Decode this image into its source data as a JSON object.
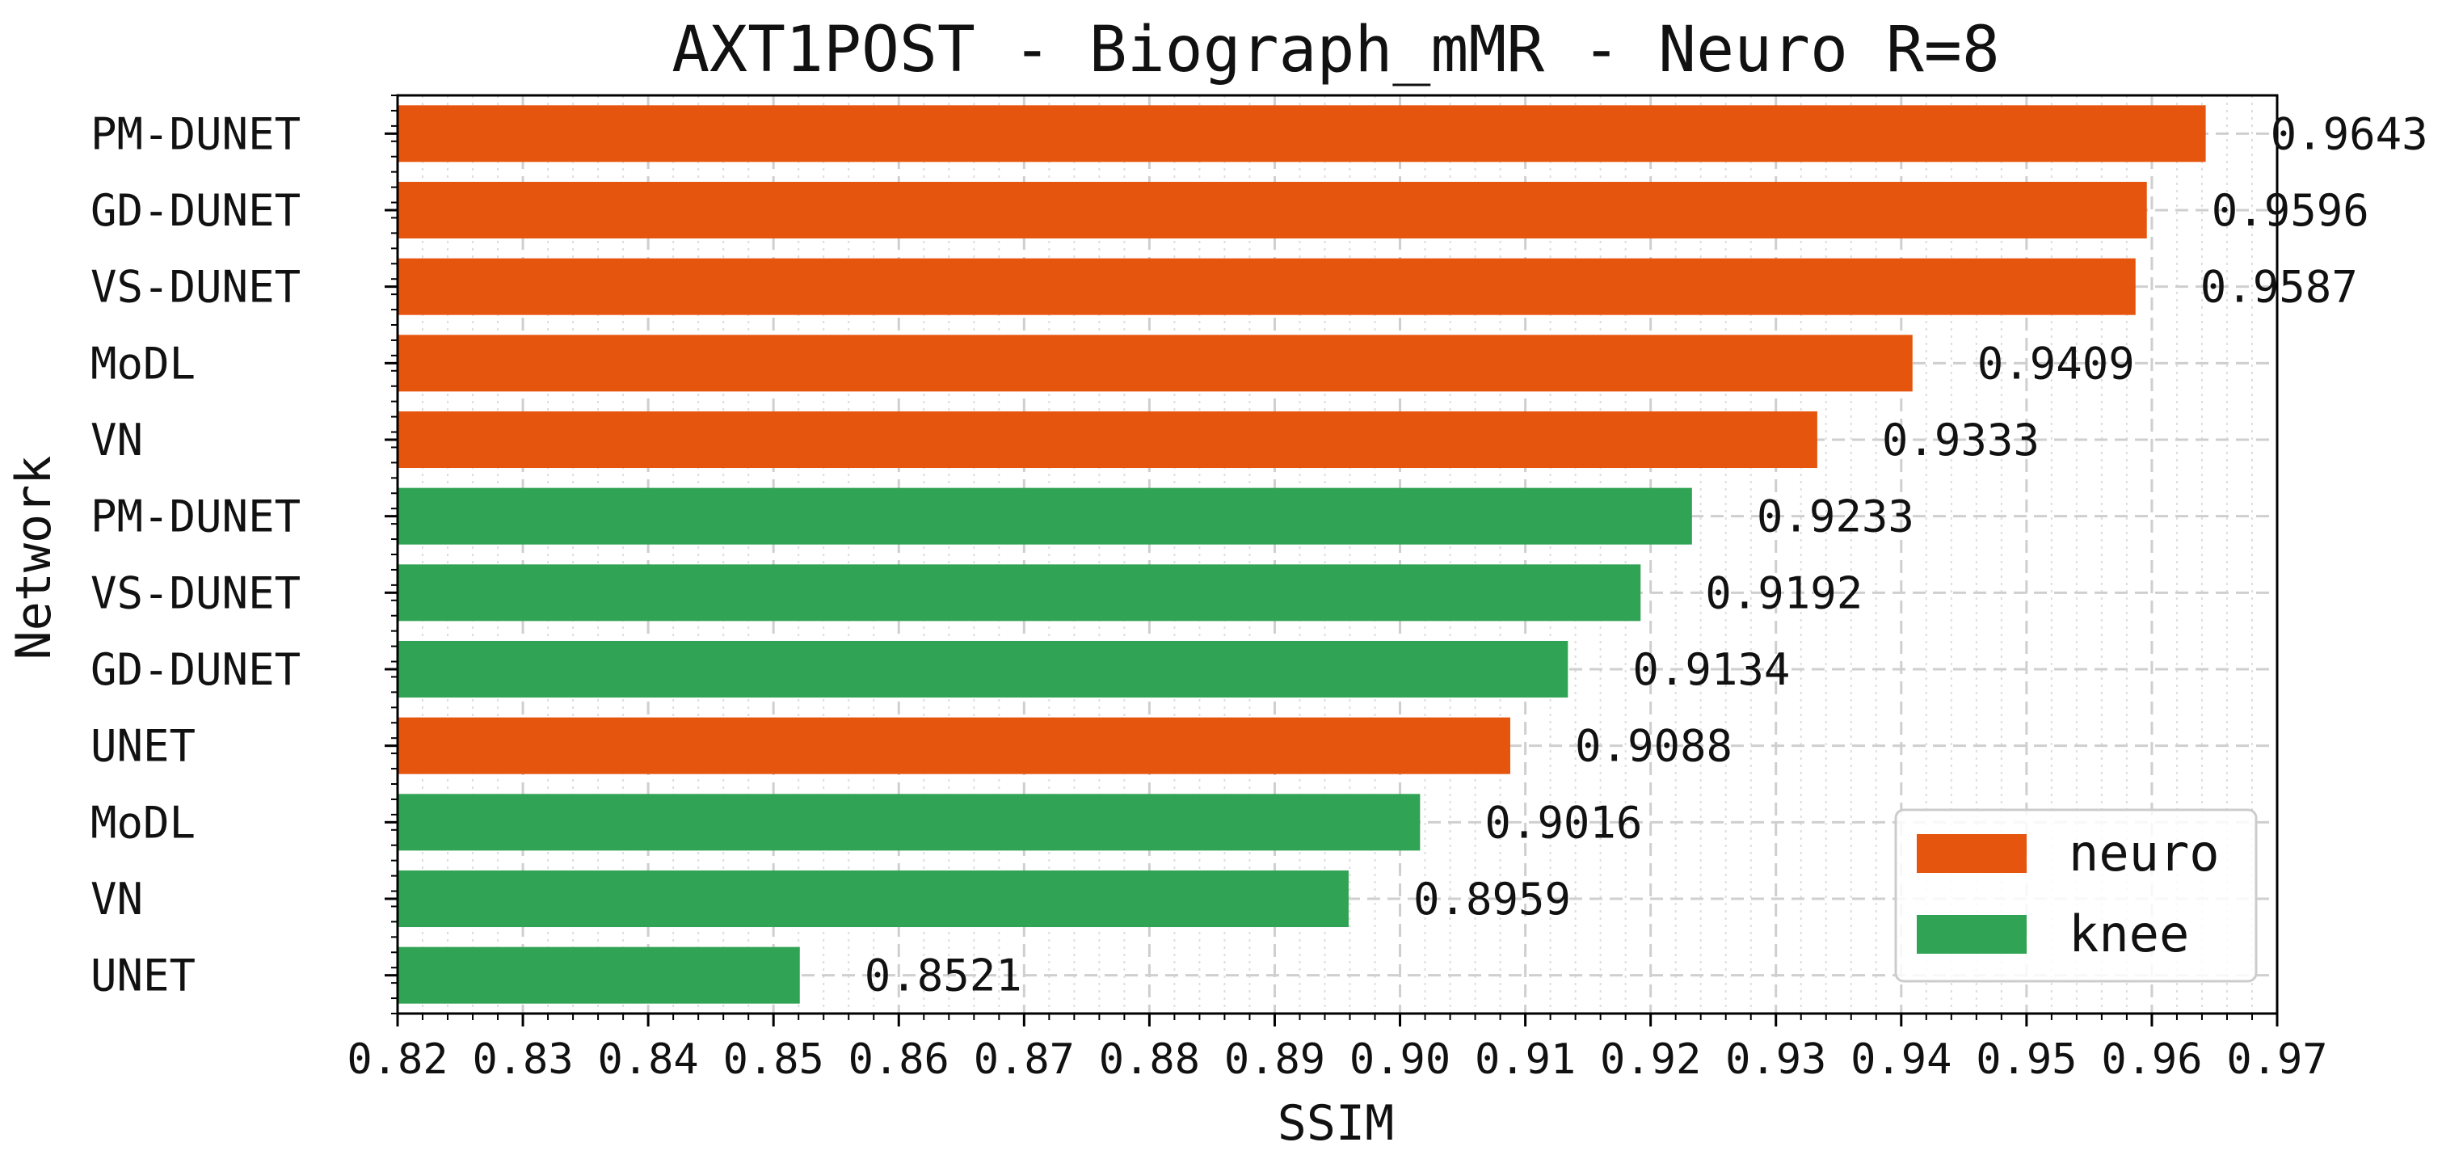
{
  "chart_data": {
    "type": "bar",
    "orientation": "horizontal",
    "title": "AXT1POST - Biograph_mMR - Neuro R=8",
    "xlabel": "SSIM",
    "ylabel": "Network",
    "xlim": [
      0.82,
      0.97
    ],
    "xticks": [
      "0.82",
      "0.83",
      "0.84",
      "0.85",
      "0.86",
      "0.87",
      "0.88",
      "0.89",
      "0.90",
      "0.91",
      "0.92",
      "0.93",
      "0.94",
      "0.95",
      "0.96",
      "0.97"
    ],
    "grid": true,
    "legend_position": "bottom-right",
    "series": [
      {
        "name": "neuro",
        "color": "#e6550d"
      },
      {
        "name": "knee",
        "color": "#31a354"
      }
    ],
    "bars": [
      {
        "category": "PM-DUNET",
        "value": 0.9643,
        "label": "0.9643",
        "series": "neuro"
      },
      {
        "category": "GD-DUNET",
        "value": 0.9596,
        "label": "0.9596",
        "series": "neuro"
      },
      {
        "category": "VS-DUNET",
        "value": 0.9587,
        "label": "0.9587",
        "series": "neuro"
      },
      {
        "category": "MoDL",
        "value": 0.9409,
        "label": "0.9409",
        "series": "neuro"
      },
      {
        "category": "VN",
        "value": 0.9333,
        "label": "0.9333",
        "series": "neuro"
      },
      {
        "category": "PM-DUNET",
        "value": 0.9233,
        "label": "0.9233",
        "series": "knee"
      },
      {
        "category": "VS-DUNET",
        "value": 0.9192,
        "label": "0.9192",
        "series": "knee"
      },
      {
        "category": "GD-DUNET",
        "value": 0.9134,
        "label": "0.9134",
        "series": "knee"
      },
      {
        "category": "UNET",
        "value": 0.9088,
        "label": "0.9088",
        "series": "neuro"
      },
      {
        "category": "MoDL",
        "value": 0.9016,
        "label": "0.9016",
        "series": "knee"
      },
      {
        "category": "VN",
        "value": 0.8959,
        "label": "0.8959",
        "series": "knee"
      },
      {
        "category": "UNET",
        "value": 0.8521,
        "label": "0.8521",
        "series": "knee"
      }
    ]
  }
}
